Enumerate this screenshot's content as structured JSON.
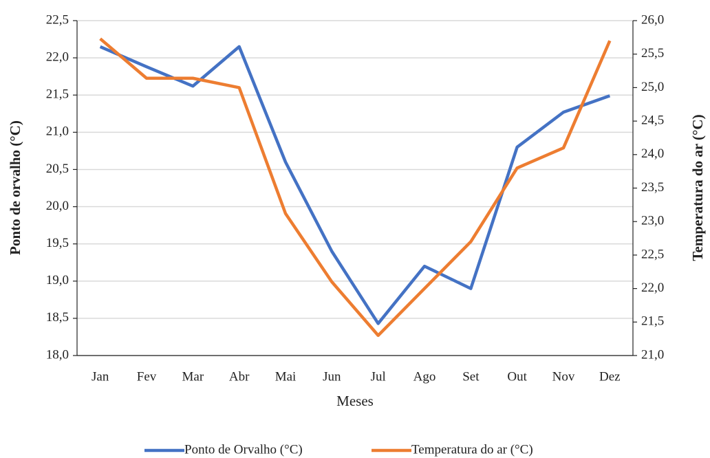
{
  "chart_data": {
    "type": "line",
    "x_label": "Meses",
    "y_label": "Ponto de orvalho (°C)",
    "y2_label": "Temperatura do ar (°C)",
    "categories": [
      "Jan",
      "Fev",
      "Mar",
      "Abr",
      "Mai",
      "Jun",
      "Jul",
      "Ago",
      "Set",
      "Out",
      "Nov",
      "Dez"
    ],
    "series": [
      {
        "name": "Ponto de Orvalho (°C)",
        "color": "#4472c4",
        "axis": "y",
        "values": [
          22.15,
          21.88,
          21.62,
          22.15,
          20.6,
          19.4,
          18.43,
          19.2,
          18.9,
          20.8,
          21.27,
          21.49
        ]
      },
      {
        "name": "Temperatura do ar (°C)",
        "color": "#ed7d31",
        "axis": "y2",
        "values": [
          25.73,
          25.14,
          25.14,
          25.0,
          23.12,
          22.1,
          21.3,
          22.0,
          22.7,
          23.8,
          24.1,
          25.7
        ]
      }
    ],
    "ylim": [
      18,
      22.5
    ],
    "yticks": [
      {
        "value": 18,
        "label": "18,0"
      },
      {
        "value": 18.5,
        "label": "18,5"
      },
      {
        "value": 19,
        "label": "19,0"
      },
      {
        "value": 19.5,
        "label": "19,5"
      },
      {
        "value": 20,
        "label": "20,0"
      },
      {
        "value": 20.5,
        "label": "20,5"
      },
      {
        "value": 21,
        "label": "21,0"
      },
      {
        "value": 21.5,
        "label": "21,5"
      },
      {
        "value": 22,
        "label": "22,0"
      },
      {
        "value": 22.5,
        "label": "22,5"
      }
    ],
    "y2lim": [
      21,
      26
    ],
    "y2ticks": [
      {
        "value": 21,
        "label": "21,0"
      },
      {
        "value": 21.5,
        "label": "21,5"
      },
      {
        "value": 22,
        "label": "22,0"
      },
      {
        "value": 22.5,
        "label": "22,5"
      },
      {
        "value": 23,
        "label": "23,0"
      },
      {
        "value": 23.5,
        "label": "23,5"
      },
      {
        "value": 24,
        "label": "24,0"
      },
      {
        "value": 24.5,
        "label": "24,5"
      },
      {
        "value": 25,
        "label": "25,0"
      },
      {
        "value": 25.5,
        "label": "25,5"
      },
      {
        "value": 26,
        "label": "26,0"
      }
    ],
    "grid": true,
    "legend": "bottom"
  }
}
